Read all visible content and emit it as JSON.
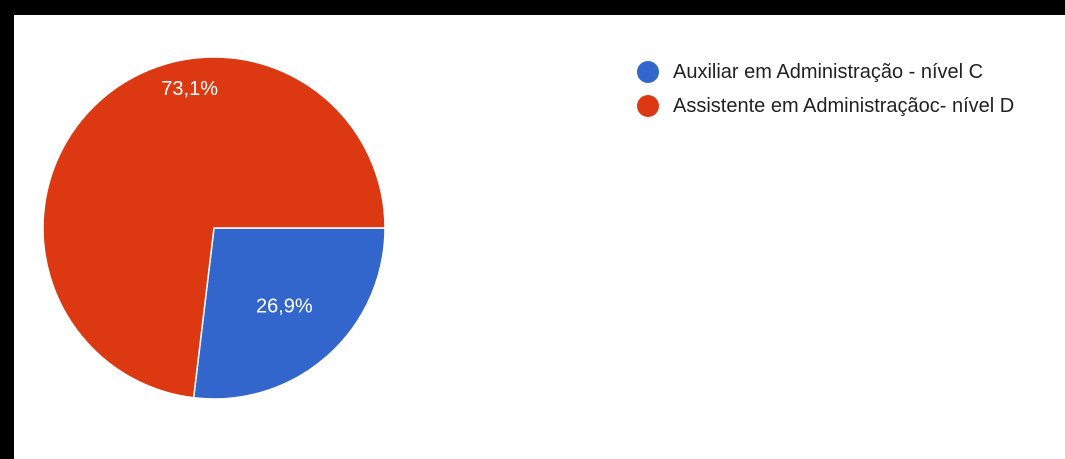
{
  "chart_data": {
    "type": "pie",
    "slices": [
      {
        "label": "Auxiliar em Administração - nível C",
        "value": 26.9,
        "display": "26,9%",
        "color": "#3366cc"
      },
      {
        "label": "Assistente em Administraçãoc- nível D",
        "value": 73.1,
        "display": "73,1%",
        "color": "#dc3912"
      }
    ],
    "start": "3 o'clock, clockwise",
    "legend_position": "right"
  }
}
